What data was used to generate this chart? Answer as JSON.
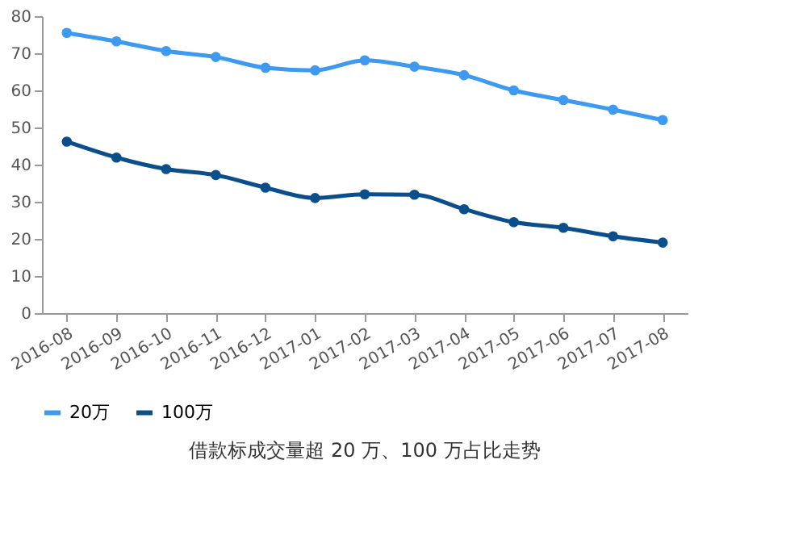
{
  "chart_data": {
    "type": "line",
    "title": "借款标成交量超 20 万、100 万占比走势",
    "categories": [
      "2016-08",
      "2016-09",
      "2016-10",
      "2016-11",
      "2016-12",
      "2017-01",
      "2017-02",
      "2017-03",
      "2017-04",
      "2017-05",
      "2017-06",
      "2017-07",
      "2017-08"
    ],
    "series": [
      {
        "name": "20万",
        "color": "#3d9af0",
        "values": [
          75.5,
          73.2,
          70.6,
          69.0,
          66.1,
          65.4,
          68.1,
          66.4,
          64.1,
          60.0,
          57.4,
          54.8,
          52.0
        ]
      },
      {
        "name": "100万",
        "color": "#0a4f8c",
        "values": [
          46.2,
          41.9,
          38.8,
          37.2,
          33.8,
          31.0,
          32.0,
          31.9,
          28.0,
          24.5,
          23.0,
          20.7,
          19.0
        ]
      }
    ],
    "ylim": [
      0,
      80
    ],
    "yticks": [
      0,
      10,
      20,
      30,
      40,
      50,
      60,
      70,
      80
    ],
    "grid": false,
    "legend": "bottom",
    "marker": "circle",
    "line_style": "solid"
  }
}
